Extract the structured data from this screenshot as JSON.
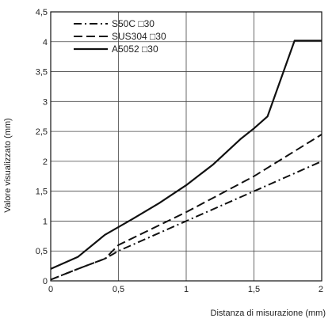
{
  "chart_data": {
    "type": "line",
    "title": "",
    "xlabel": "Distanza di misurazione (mm)",
    "ylabel": "Valore visualizzato (mm)",
    "xlim": [
      0,
      2
    ],
    "ylim": [
      0,
      4.5
    ],
    "x_ticks": [
      0,
      0.5,
      1,
      1.5,
      2
    ],
    "x_tick_labels": [
      "0",
      "0,5",
      "1",
      "1,5",
      "2"
    ],
    "y_ticks": [
      0,
      0.5,
      1,
      1.5,
      2,
      2.5,
      3,
      3.5,
      4,
      4.5
    ],
    "y_tick_labels": [
      "0",
      "0,5",
      "1",
      "1,5",
      "2",
      "2,5",
      "3",
      "3,5",
      "4",
      "4,5"
    ],
    "grid": true,
    "legend_position": "top-left",
    "series": [
      {
        "name": "S50C □30",
        "style": "dash-dot",
        "color": "#111111",
        "x": [
          0,
          0.2,
          0.4,
          0.5,
          1.0,
          1.5,
          2.0
        ],
        "y": [
          0.02,
          0.2,
          0.37,
          0.5,
          1.0,
          1.5,
          2.0
        ]
      },
      {
        "name": "SUS304 □30",
        "style": "dash",
        "color": "#111111",
        "x": [
          0,
          0.2,
          0.4,
          0.5,
          1.0,
          1.5,
          2.0
        ],
        "y": [
          0.02,
          0.2,
          0.37,
          0.6,
          1.15,
          1.75,
          2.45
        ]
      },
      {
        "name": "A5052 □30",
        "style": "solid",
        "color": "#111111",
        "x": [
          0,
          0.2,
          0.4,
          0.6,
          0.8,
          1.0,
          1.2,
          1.4,
          1.5,
          1.6,
          1.8,
          2.0
        ],
        "y": [
          0.2,
          0.4,
          0.77,
          1.03,
          1.3,
          1.6,
          1.95,
          2.37,
          2.55,
          2.75,
          4.02,
          4.02
        ]
      }
    ]
  }
}
